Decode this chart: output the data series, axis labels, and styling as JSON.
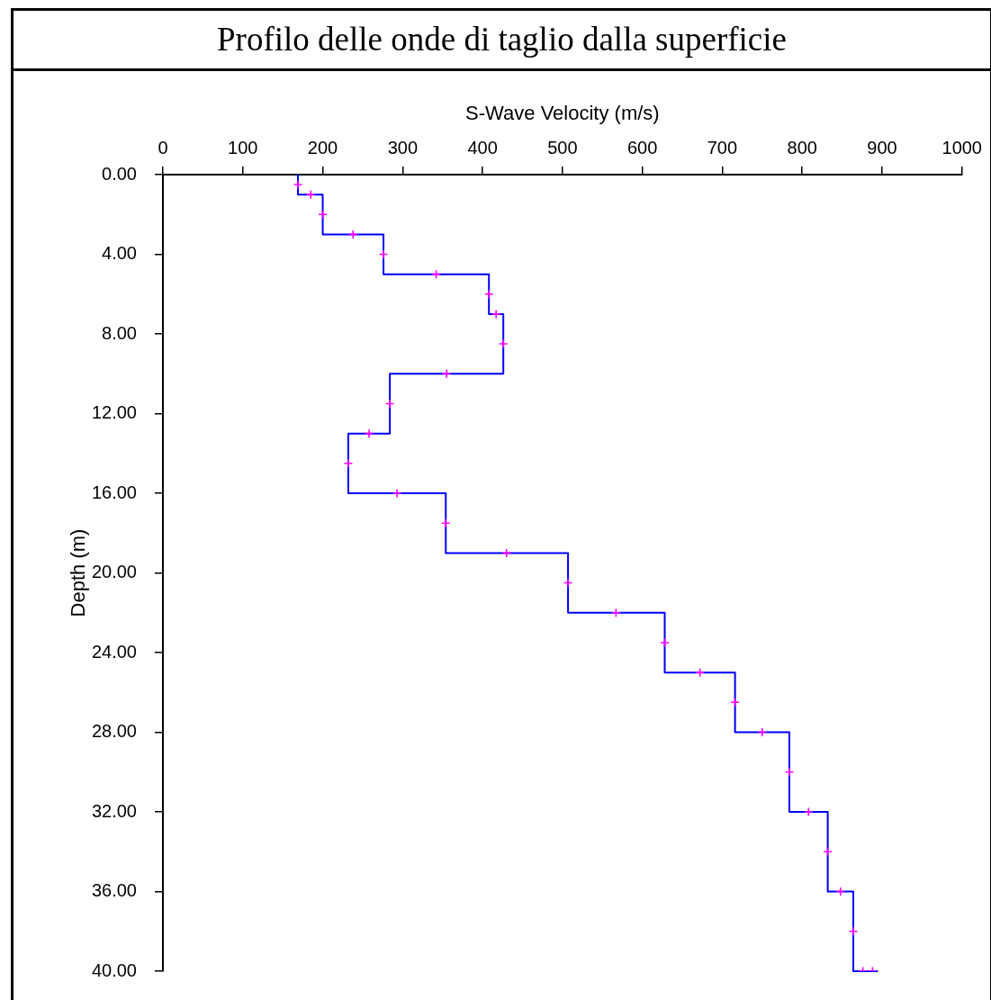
{
  "chart_data": {
    "type": "line",
    "title": "Profilo delle onde di taglio dalla superficie",
    "xlabel": "S-Wave Velocity (m/s)",
    "ylabel": "Depth (m)",
    "xlim": [
      0,
      1000
    ],
    "xticks": [
      0,
      100,
      200,
      300,
      400,
      500,
      600,
      700,
      800,
      900,
      1000
    ],
    "ylim": [
      40,
      0
    ],
    "yticks": [
      {
        "value": 0,
        "label": "0.00"
      },
      {
        "value": 4,
        "label": "4.00"
      },
      {
        "value": 8,
        "label": "8.00"
      },
      {
        "value": 12,
        "label": "12.00"
      },
      {
        "value": 16,
        "label": "16.00"
      },
      {
        "value": 20,
        "label": "20.00"
      },
      {
        "value": 24,
        "label": "24.00"
      },
      {
        "value": 28,
        "label": "28.00"
      },
      {
        "value": 32,
        "label": "32.00"
      },
      {
        "value": 36,
        "label": "36.00"
      },
      {
        "value": 40,
        "label": "40.00"
      }
    ],
    "grid": false,
    "legend": false,
    "series": [
      {
        "type": "line",
        "color": "#0000ff",
        "marker": "none",
        "line_style": "solid",
        "x": [
          169,
          169,
          200,
          200,
          276,
          276,
          408,
          408,
          426,
          426,
          284,
          284,
          232,
          232,
          354,
          354,
          507,
          507,
          628,
          628,
          716,
          716,
          784,
          784,
          832,
          832,
          864,
          864,
          894
        ],
        "values": [
          0,
          1,
          1,
          3,
          3,
          5,
          5,
          7,
          7,
          10,
          10,
          13,
          13,
          16,
          16,
          19,
          19,
          22,
          22,
          25,
          25,
          28,
          28,
          32,
          32,
          36,
          36,
          40,
          40
        ]
      },
      {
        "type": "scatter",
        "color": "#ff00ff",
        "marker": "cross",
        "x": [
          169,
          185,
          200,
          238,
          276,
          342,
          408,
          417,
          426,
          355,
          284,
          258,
          232,
          293,
          354,
          430,
          507,
          567,
          628,
          672,
          716,
          750,
          784,
          808,
          832,
          848,
          864,
          876,
          888
        ],
        "values": [
          0.5,
          1,
          2,
          3,
          4,
          5,
          6,
          7,
          8.5,
          10,
          11.5,
          13,
          14.5,
          16,
          17.5,
          19,
          20.5,
          22,
          23.5,
          25,
          26.5,
          28,
          30,
          32,
          34,
          36,
          38,
          40,
          40
        ]
      }
    ]
  }
}
